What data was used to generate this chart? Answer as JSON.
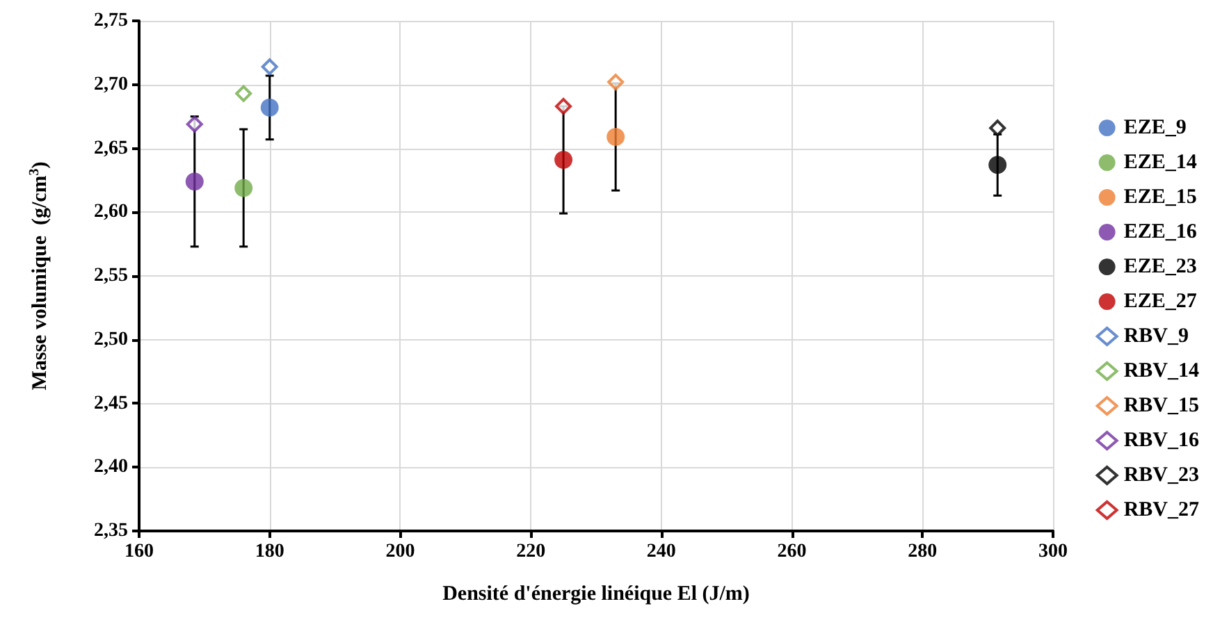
{
  "chart_data": {
    "type": "scatter",
    "xlabel": "Densité d'énergie linéique El (J/m)",
    "ylabel": "Masse volumique  (g/cm$^{3}$)",
    "xlim": [
      160,
      300
    ],
    "xticks": [
      160,
      180,
      200,
      220,
      240,
      260,
      280,
      300
    ],
    "ylim": [
      2.35,
      2.75
    ],
    "yticks": [
      {
        "value": 2.35,
        "label": "2,35"
      },
      {
        "value": 2.4,
        "label": "2,40"
      },
      {
        "value": 2.45,
        "label": "2,45"
      },
      {
        "value": 2.5,
        "label": "2,50"
      },
      {
        "value": 2.55,
        "label": "2,55"
      },
      {
        "value": 2.6,
        "label": "2,60"
      },
      {
        "value": 2.65,
        "label": "2,65"
      },
      {
        "value": 2.7,
        "label": "2,70"
      },
      {
        "value": 2.75,
        "label": "2,75"
      }
    ],
    "grid": true,
    "legend": "right",
    "series": [
      {
        "name": "EZE_9",
        "color": "#4472c4",
        "marker": "circle",
        "x": [
          180
        ],
        "values": [
          2.682
        ],
        "errors": [
          0.025
        ]
      },
      {
        "name": "EZE_14",
        "color": "#70ad47",
        "marker": "circle",
        "x": [
          176
        ],
        "values": [
          2.619
        ],
        "errors": [
          0.046
        ]
      },
      {
        "name": "EZE_15",
        "color": "#ed7d31",
        "marker": "circle",
        "x": [
          233
        ],
        "values": [
          2.659
        ],
        "errors": [
          0.042
        ]
      },
      {
        "name": "EZE_16",
        "color": "#7030a0",
        "marker": "circle",
        "x": [
          168.5
        ],
        "values": [
          2.624
        ],
        "errors": [
          0.051
        ]
      },
      {
        "name": "EZE_23",
        "color": "#000000",
        "marker": "circle",
        "x": [
          291.5
        ],
        "values": [
          2.637
        ],
        "errors": [
          0.024
        ]
      },
      {
        "name": "EZE_27",
        "color": "#c00000",
        "marker": "circle",
        "x": [
          225
        ],
        "values": [
          2.641
        ],
        "errors": [
          0.042
        ]
      },
      {
        "name": "RBV_9",
        "color": "#4472c4",
        "marker": "diamond",
        "x": [
          180
        ],
        "values": [
          2.714
        ]
      },
      {
        "name": "RBV_14",
        "color": "#70ad47",
        "marker": "diamond",
        "x": [
          176
        ],
        "values": [
          2.693
        ]
      },
      {
        "name": "RBV_15",
        "color": "#ed7d31",
        "marker": "diamond",
        "x": [
          233
        ],
        "values": [
          2.702
        ]
      },
      {
        "name": "RBV_16",
        "color": "#7030a0",
        "marker": "diamond",
        "x": [
          168.5
        ],
        "values": [
          2.669
        ]
      },
      {
        "name": "RBV_23",
        "color": "#000000",
        "marker": "diamond",
        "x": [
          291.5
        ],
        "values": [
          2.666
        ]
      },
      {
        "name": "RBV_27",
        "color": "#c00000",
        "marker": "diamond",
        "x": [
          225
        ],
        "values": [
          2.683
        ]
      }
    ]
  }
}
